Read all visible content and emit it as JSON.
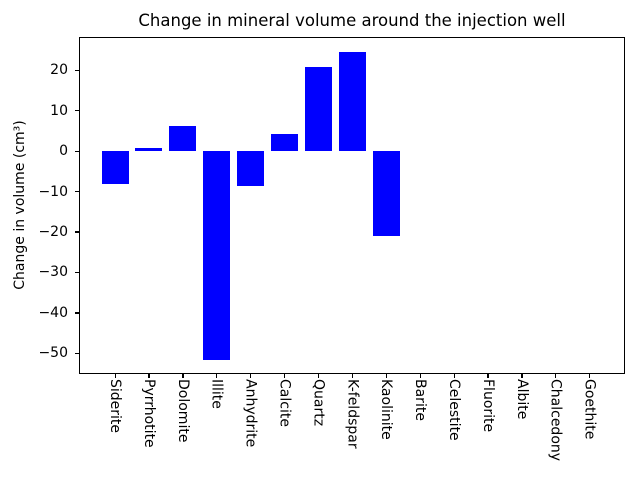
{
  "chart_data": {
    "type": "bar",
    "title": "Change in mineral volume around the injection well",
    "ylabel": "Change in volume (cm³)",
    "xlabel": "",
    "categories": [
      "Siderite",
      "Pyrrhotite",
      "Dolomite",
      "Illite",
      "Anhydrite",
      "Calcite",
      "Quartz",
      "K-feldspar",
      "Kaolinite",
      "Barite",
      "Celestite",
      "Fluorite",
      "Albite",
      "Chalcedony",
      "Goethite"
    ],
    "values": [
      -8.2,
      0.7,
      6.2,
      -51.6,
      -8.7,
      4.1,
      20.7,
      24.4,
      -21.1,
      0,
      0,
      0,
      0,
      0,
      0
    ],
    "bar_color": "#0000ff",
    "axis_color": "#000000",
    "background_color": "#ffffff",
    "ylim": [
      -55.1,
      28.2
    ],
    "ytick_values": [
      20,
      10,
      0,
      -10,
      -20,
      -30,
      -40,
      -50
    ],
    "ytick_labels": [
      "20",
      "10",
      "0",
      "−10",
      "−20",
      "−30",
      "−40",
      "−50"
    ],
    "grid": false,
    "x_tick_label_orientation": "rotated-90-clockwise"
  }
}
